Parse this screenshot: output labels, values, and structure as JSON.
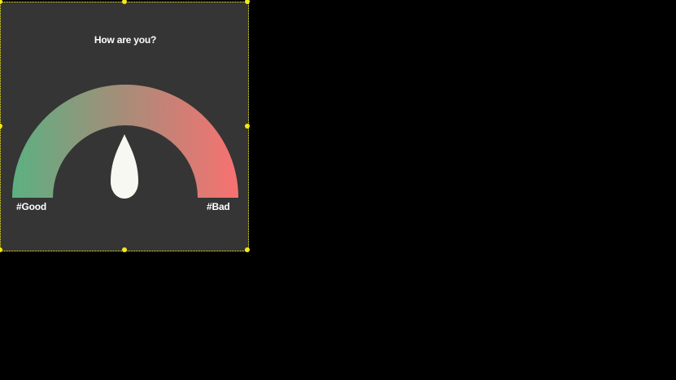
{
  "gauge": {
    "title": "How are you?",
    "min_label": "#Good",
    "max_label": "#Bad",
    "level": 0.5,
    "colors": {
      "background": "#353535",
      "start": "#5cb082",
      "end": "#f87171",
      "needle": "#f8f8f2",
      "selection_outline": "#f3ea18"
    }
  }
}
